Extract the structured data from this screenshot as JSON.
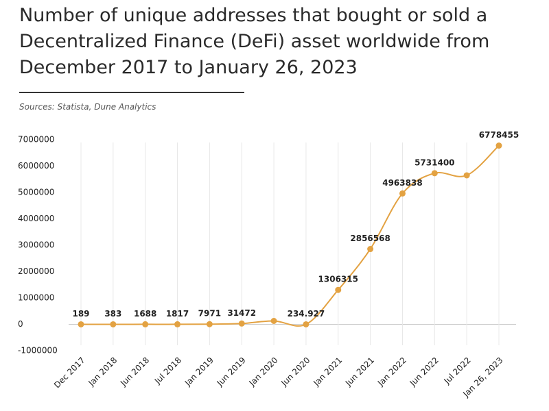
{
  "chart_data": {
    "type": "line",
    "title": "Number of unique addresses that bought or sold a Decentralized Finance (DeFi) asset worldwide from December 2017 to January 26, 2023",
    "source": "Sources: Statista, Dune Analytics",
    "categories": [
      "Dec 2017",
      "Jan 2018",
      "Jun 2018",
      "Jul 2018",
      "Jan 2019",
      "Jun 2019",
      "Jan 2020",
      "Jun 2020",
      "Jan 2021",
      "Jun 2021",
      "Jan 2022",
      "Jun 2022",
      "Jul 2022",
      "Jan 26, 2023"
    ],
    "values": [
      189,
      383,
      1688,
      1817,
      7971,
      31472,
      130000,
      234.927,
      1306315,
      2856568,
      4963838,
      5731400,
      5650000,
      6778455
    ],
    "value_labels": [
      "189",
      "383",
      "1688",
      "1817",
      "7971",
      "31472",
      null,
      "234.927",
      "1306315",
      "2856568",
      "4963838",
      "5731400",
      null,
      "6778455"
    ],
    "color": "#e3a242",
    "ylim": [
      -1000000,
      7000000
    ],
    "yticks": [
      -1000000,
      0,
      1000000,
      2000000,
      3000000,
      4000000,
      5000000,
      6000000,
      7000000
    ],
    "grid": true
  }
}
